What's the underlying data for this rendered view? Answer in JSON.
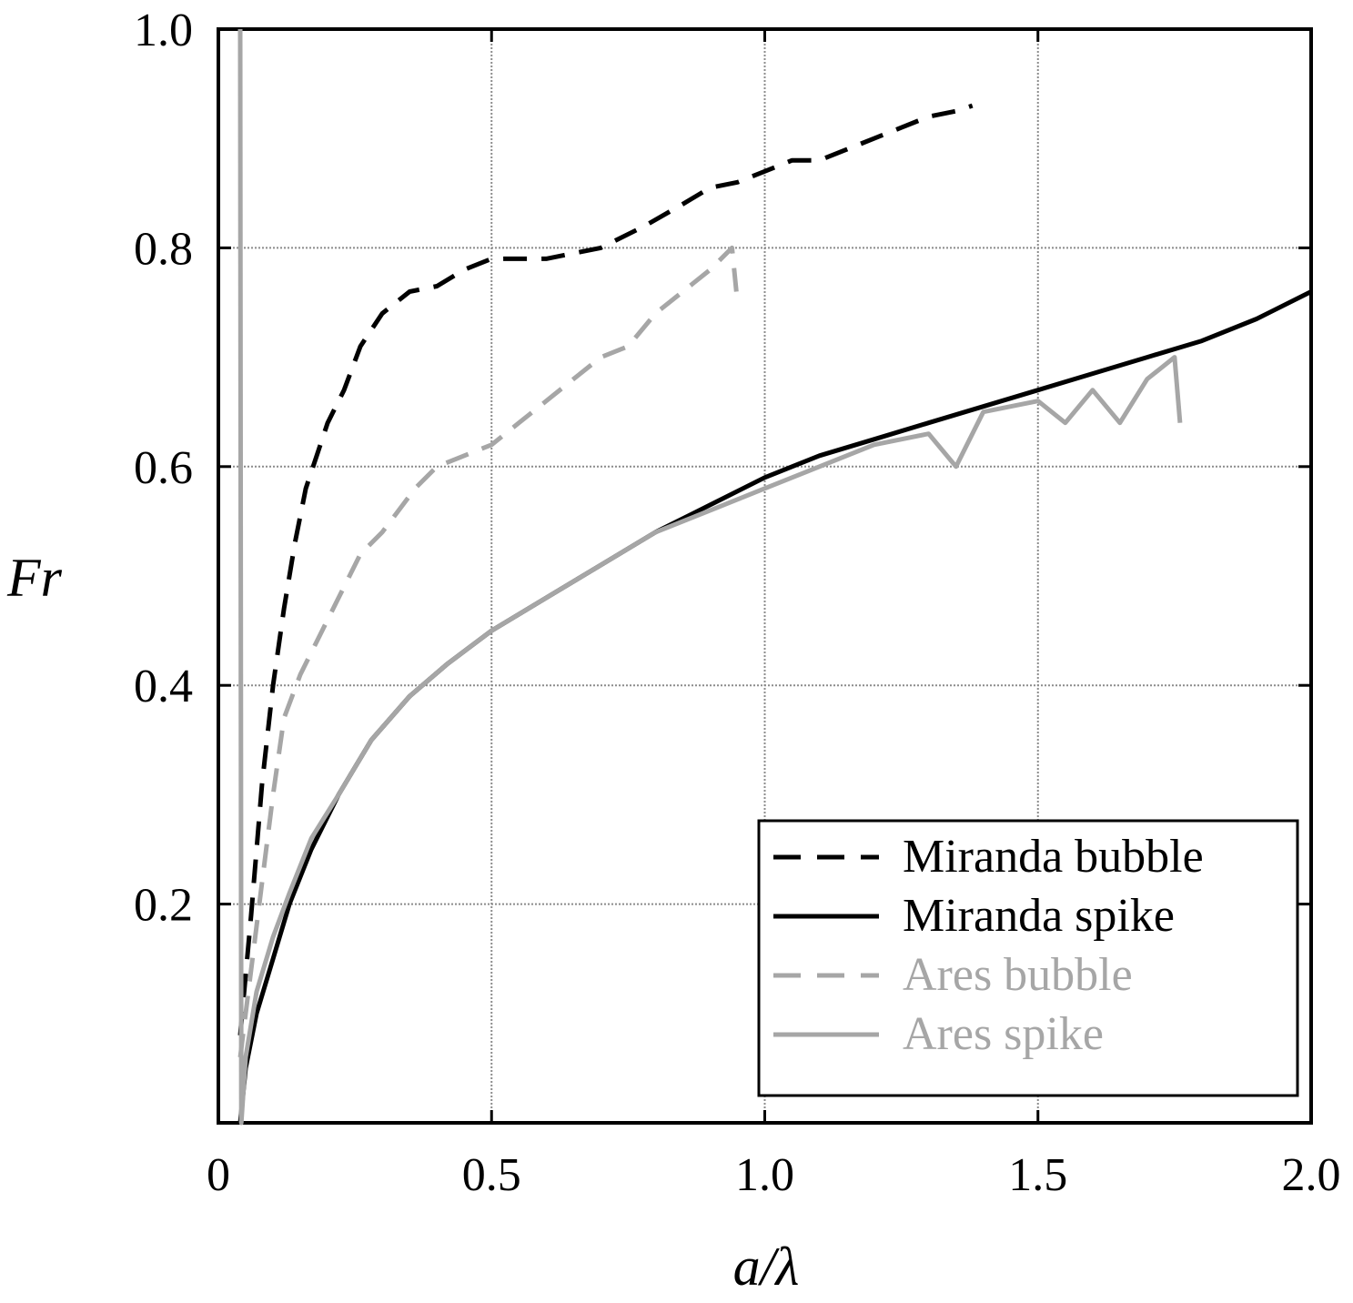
{
  "chart_data": {
    "type": "line",
    "title": "",
    "xlabel": "a/λ",
    "ylabel": "Fr",
    "xlim": [
      0,
      2.0
    ],
    "ylim": [
      0,
      1.0
    ],
    "xticks": [
      "0",
      "0.5",
      "1.0",
      "1.5",
      "2.0"
    ],
    "yticks": [
      "0.2",
      "0.4",
      "0.6",
      "0.8",
      "1.0"
    ],
    "xtick_values": [
      0,
      0.5,
      1.0,
      1.5,
      2.0
    ],
    "ytick_values": [
      0.2,
      0.4,
      0.6,
      0.8,
      1.0
    ],
    "grid": true,
    "legend_position": "bottom-right",
    "series": [
      {
        "name": "Miranda bubble",
        "color": "#000000",
        "dash": "dashed",
        "x": [
          0.04,
          0.06,
          0.08,
          0.1,
          0.12,
          0.14,
          0.16,
          0.18,
          0.2,
          0.23,
          0.26,
          0.3,
          0.35,
          0.4,
          0.45,
          0.5,
          0.55,
          0.6,
          0.7,
          0.78,
          0.85,
          0.9,
          0.95,
          1.0,
          1.05,
          1.1,
          1.15,
          1.2,
          1.25,
          1.3,
          1.35,
          1.38
        ],
        "y": [
          0.08,
          0.19,
          0.31,
          0.4,
          0.47,
          0.53,
          0.58,
          0.61,
          0.64,
          0.67,
          0.71,
          0.74,
          0.76,
          0.765,
          0.78,
          0.79,
          0.79,
          0.79,
          0.8,
          0.82,
          0.84,
          0.855,
          0.86,
          0.87,
          0.88,
          0.88,
          0.89,
          0.9,
          0.91,
          0.92,
          0.925,
          0.93
        ]
      },
      {
        "name": "Miranda spike",
        "color": "#000000",
        "dash": "solid",
        "x": [
          0.04,
          0.05,
          0.07,
          0.1,
          0.13,
          0.17,
          0.22,
          0.28,
          0.35,
          0.42,
          0.5,
          0.6,
          0.7,
          0.8,
          0.9,
          1.0,
          1.1,
          1.2,
          1.3,
          1.4,
          1.5,
          1.6,
          1.7,
          1.8,
          1.9,
          2.0
        ],
        "y": [
          0.0,
          0.05,
          0.1,
          0.15,
          0.2,
          0.25,
          0.3,
          0.35,
          0.39,
          0.42,
          0.45,
          0.48,
          0.51,
          0.54,
          0.565,
          0.59,
          0.61,
          0.625,
          0.64,
          0.655,
          0.67,
          0.685,
          0.7,
          0.715,
          0.735,
          0.76
        ]
      },
      {
        "name": "Ares bubble",
        "color": "#a6a6a6",
        "dash": "dashed",
        "x": [
          0.04,
          0.06,
          0.08,
          0.1,
          0.12,
          0.15,
          0.18,
          0.22,
          0.26,
          0.3,
          0.33,
          0.36,
          0.4,
          0.45,
          0.5,
          0.55,
          0.6,
          0.65,
          0.7,
          0.75,
          0.8,
          0.85,
          0.9,
          0.94,
          0.95
        ],
        "y": [
          0.06,
          0.14,
          0.22,
          0.3,
          0.37,
          0.41,
          0.44,
          0.48,
          0.52,
          0.54,
          0.56,
          0.58,
          0.6,
          0.61,
          0.62,
          0.64,
          0.66,
          0.68,
          0.7,
          0.71,
          0.74,
          0.76,
          0.78,
          0.8,
          0.75
        ]
      },
      {
        "name": "Ares spike",
        "color": "#a6a6a6",
        "dash": "solid",
        "x": [
          0.04,
          0.042,
          0.05,
          0.07,
          0.1,
          0.13,
          0.17,
          0.22,
          0.28,
          0.35,
          0.42,
          0.5,
          0.6,
          0.7,
          0.8,
          0.9,
          1.0,
          1.1,
          1.2,
          1.3,
          1.35,
          1.4,
          1.5,
          1.55,
          1.6,
          1.65,
          1.7,
          1.75,
          1.76
        ],
        "y": [
          1.0,
          0.0,
          0.06,
          0.12,
          0.17,
          0.21,
          0.26,
          0.3,
          0.35,
          0.39,
          0.42,
          0.45,
          0.48,
          0.51,
          0.54,
          0.56,
          0.58,
          0.6,
          0.62,
          0.63,
          0.6,
          0.65,
          0.66,
          0.64,
          0.67,
          0.64,
          0.68,
          0.7,
          0.64
        ]
      }
    ]
  }
}
